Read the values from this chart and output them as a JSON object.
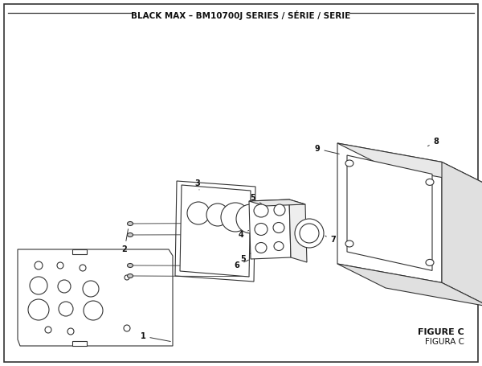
{
  "title": "BLACK MAX – BM10700J SERIES / SÉRIE / SERIE",
  "figure_label": "FIGURE C",
  "figura_label": "FIGURA C",
  "bg_color": "#ffffff",
  "border_color": "#333333",
  "line_color": "#333333",
  "line_width": 0.8,
  "title_fontsize": 7.5,
  "label_fontsize": 6.5
}
